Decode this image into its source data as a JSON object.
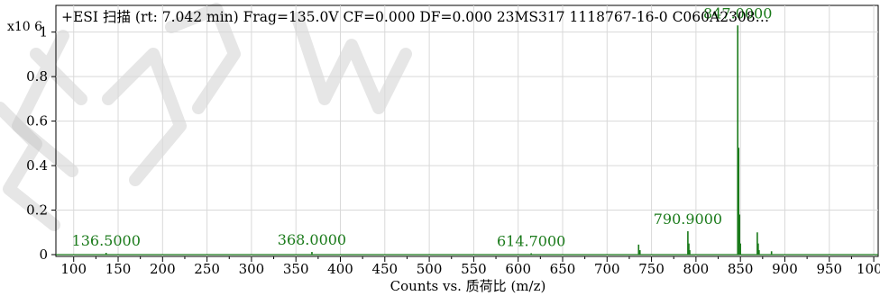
{
  "colors": {
    "trace": "#1a7a1a",
    "peak_label": "#1a7a1a",
    "grid": "#d9d9d9",
    "axis": "#000000",
    "text": "#000000",
    "watermark": "#b8b8b8"
  },
  "chart_data": {
    "type": "line",
    "title": "+ESI 扫描 (rt: 7.042 min) Frag=135.0V CF=0.000 DF=0.000 23MS317 1118767-16-0 C060A2308…",
    "y_multiplier": "x10 6",
    "xlabel": "Counts vs. 质荷比 (m/z)",
    "ylabel": "",
    "xlim": [
      80,
      1005
    ],
    "ylim": [
      0,
      1.12
    ],
    "x_ticks": [
      100,
      150,
      200,
      250,
      300,
      350,
      400,
      450,
      500,
      550,
      600,
      650,
      700,
      750,
      800,
      850,
      900,
      950,
      1000
    ],
    "x_tick_labels": [
      "100",
      "150",
      "200",
      "250",
      "300",
      "350",
      "400",
      "450",
      "500",
      "550",
      "600",
      "650",
      "700",
      "750",
      "800",
      "850",
      "900",
      "950",
      "1000"
    ],
    "y_ticks": [
      0,
      0.2,
      0.4,
      0.6,
      0.8,
      1
    ],
    "y_tick_labels": [
      "0",
      "0.2",
      "0.4",
      "0.6",
      "0.8",
      "1"
    ],
    "grid": true,
    "peaks": [
      {
        "mz": 136.5,
        "intensity": 0.008
      },
      {
        "mz": 368.0,
        "intensity": 0.012
      },
      {
        "mz": 614.7,
        "intensity": 0.006
      },
      {
        "mz": 735.5,
        "intensity": 0.045
      },
      {
        "mz": 737.0,
        "intensity": 0.02
      },
      {
        "mz": 790.9,
        "intensity": 0.105
      },
      {
        "mz": 792.0,
        "intensity": 0.05
      },
      {
        "mz": 793.0,
        "intensity": 0.02
      },
      {
        "mz": 847.0,
        "intensity": 1.03
      },
      {
        "mz": 848.0,
        "intensity": 0.48
      },
      {
        "mz": 849.0,
        "intensity": 0.18
      },
      {
        "mz": 850.0,
        "intensity": 0.05
      },
      {
        "mz": 869.0,
        "intensity": 0.1
      },
      {
        "mz": 870.0,
        "intensity": 0.05
      },
      {
        "mz": 871.0,
        "intensity": 0.02
      },
      {
        "mz": 885.0,
        "intensity": 0.015
      }
    ],
    "annotations": [
      {
        "text": "847.0000",
        "mz": 847.0,
        "intensity": 1.03
      },
      {
        "text": "790.9000",
        "mz": 790.9,
        "intensity": 0.105
      },
      {
        "text": "614.7000",
        "mz": 614.7,
        "intensity": 0.006
      },
      {
        "text": "368.0000",
        "mz": 368.0,
        "intensity": 0.012
      },
      {
        "text": "136.5000",
        "mz": 136.5,
        "intensity": 0.008
      }
    ]
  }
}
